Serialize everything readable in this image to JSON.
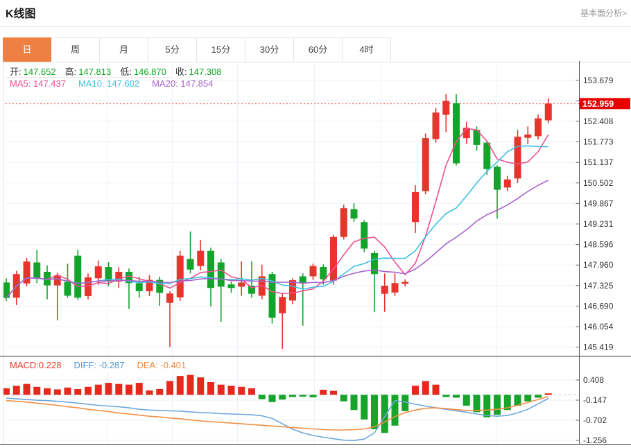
{
  "header": {
    "title": "K线图",
    "link": "基本面分析>"
  },
  "tabs": {
    "items": [
      "日",
      "周",
      "月",
      "5分",
      "15分",
      "30分",
      "60分",
      "4时"
    ],
    "active_index": 0
  },
  "info": {
    "open_label": "开:",
    "open": "147.652",
    "high_label": "高:",
    "high": "147.813",
    "low_label": "低:",
    "low": "146.870",
    "close_label": "收:",
    "close": "147.308"
  },
  "ma_info": {
    "ma5_label": "MA5:",
    "ma5": "147.437",
    "ma10_label": "MA10:",
    "ma10": "147.602",
    "ma20_label": "MA20:",
    "ma20": "147.854"
  },
  "macd_info": {
    "macd_label": "MACD:",
    "macd": "0.228",
    "diff_label": "DIFF:",
    "diff": "-0.287",
    "dea_label": "DEA:",
    "dea": "-0.401"
  },
  "colors": {
    "accent_orange": "#ef8044",
    "value_green": "#0ba61e",
    "current_price_bg": "#e60000",
    "dotted_line": "#f57d7d",
    "grid": "#edf1f7",
    "axis_line": "#555555",
    "panel_separator": "#2b2b2b"
  },
  "chart_data": {
    "type": "candlestick",
    "title": "K线图",
    "legend": [
      "MA5",
      "MA10",
      "MA20",
      "MACD",
      "DIFF",
      "DEA"
    ],
    "price_panel": {
      "type": "candlestick",
      "up_color": "#e5352c",
      "down_color": "#14a42c",
      "current_price": 152.959,
      "current_price_label": "152.959",
      "y_ticks": [
        {
          "v": 153.679,
          "label": "153.679"
        },
        {
          "v": 153.044,
          "label": ""
        },
        {
          "v": 152.408,
          "label": "152.408"
        },
        {
          "v": 151.773,
          "label": "151.773"
        },
        {
          "v": 151.137,
          "label": "151.137"
        },
        {
          "v": 150.502,
          "label": "150.502"
        },
        {
          "v": 149.867,
          "label": "149.867"
        },
        {
          "v": 149.231,
          "label": "149.231"
        },
        {
          "v": 148.596,
          "label": "148.596"
        },
        {
          "v": 147.96,
          "label": "147.960"
        },
        {
          "v": 147.325,
          "label": "147.325"
        },
        {
          "v": 146.69,
          "label": "146.690"
        },
        {
          "v": 146.054,
          "label": "146.054"
        },
        {
          "v": 145.419,
          "label": "145.419"
        }
      ],
      "ma_periods": [
        5,
        10,
        20
      ],
      "ma_colors": [
        "#ee4f8f",
        "#3ec1e2",
        "#a861cc"
      ],
      "candles": [
        [
          147.42,
          146.94,
          146.85,
          147.55
        ],
        [
          146.95,
          147.68,
          146.72,
          147.78
        ],
        [
          147.39,
          148.07,
          147.3,
          148.18
        ],
        [
          148.04,
          147.54,
          147.4,
          148.43
        ],
        [
          147.75,
          147.33,
          146.9,
          147.95
        ],
        [
          147.33,
          147.64,
          146.25,
          147.72
        ],
        [
          147.44,
          147.01,
          146.95,
          148.0
        ],
        [
          148.25,
          146.95,
          146.88,
          148.43
        ],
        [
          147.0,
          147.58,
          146.9,
          147.7
        ],
        [
          147.55,
          147.92,
          147.35,
          148.1
        ],
        [
          147.9,
          147.45,
          147.3,
          148.05
        ],
        [
          147.45,
          147.75,
          147.25,
          147.9
        ],
        [
          147.75,
          147.4,
          146.6,
          147.85
        ],
        [
          147.4,
          147.15,
          146.95,
          147.6
        ],
        [
          147.15,
          147.5,
          147.0,
          147.65
        ],
        [
          147.5,
          147.1,
          146.7,
          147.6
        ],
        [
          146.79,
          147.08,
          145.42,
          147.15
        ],
        [
          146.96,
          148.25,
          146.85,
          148.4
        ],
        [
          148.15,
          147.82,
          147.7,
          149.0
        ],
        [
          147.93,
          148.4,
          147.8,
          148.74
        ],
        [
          148.4,
          147.25,
          146.68,
          148.5
        ],
        [
          148.04,
          147.29,
          146.2,
          148.15
        ],
        [
          147.36,
          147.25,
          147.1,
          147.45
        ],
        [
          147.29,
          147.42,
          147.01,
          148.07
        ],
        [
          147.32,
          147.07,
          146.95,
          148.07
        ],
        [
          147.01,
          147.61,
          146.9,
          147.97
        ],
        [
          147.68,
          146.33,
          146.15,
          147.75
        ],
        [
          146.47,
          146.97,
          145.37,
          147.07
        ],
        [
          146.86,
          147.49,
          146.75,
          147.55
        ],
        [
          147.61,
          147.4,
          146.08,
          147.7
        ],
        [
          147.61,
          147.93,
          147.5,
          148.0
        ],
        [
          147.9,
          147.52,
          147.35,
          147.98
        ],
        [
          147.48,
          148.83,
          147.35,
          148.9
        ],
        [
          148.83,
          149.72,
          148.75,
          149.83
        ],
        [
          149.69,
          149.4,
          149.3,
          149.87
        ],
        [
          149.29,
          148.47,
          148.36,
          149.35
        ],
        [
          148.33,
          147.68,
          146.5,
          148.4
        ],
        [
          147.07,
          147.32,
          146.51,
          147.7
        ],
        [
          147.11,
          147.4,
          147.0,
          147.7
        ],
        [
          147.38,
          147.44,
          147.3,
          147.52
        ],
        [
          149.29,
          150.22,
          148.95,
          150.43
        ],
        [
          150.25,
          151.89,
          150.15,
          152.03
        ],
        [
          151.86,
          152.68,
          151.75,
          152.82
        ],
        [
          152.61,
          153.04,
          152.07,
          153.25
        ],
        [
          152.97,
          151.11,
          151.04,
          153.25
        ],
        [
          151.89,
          152.21,
          151.71,
          152.39
        ],
        [
          152.14,
          151.68,
          151.5,
          152.25
        ],
        [
          151.75,
          150.93,
          150.75,
          151.8
        ],
        [
          151.0,
          150.29,
          149.4,
          151.05
        ],
        [
          150.36,
          150.61,
          150.25,
          150.72
        ],
        [
          150.64,
          151.93,
          150.5,
          152.14
        ],
        [
          151.9,
          152.0,
          151.7,
          152.25
        ],
        [
          151.95,
          152.5,
          151.85,
          152.62
        ],
        [
          152.44,
          152.959,
          152.35,
          153.12
        ]
      ]
    },
    "macd_panel": {
      "type": "bar",
      "hist_up_color": "#e6291d",
      "hist_down_color": "#16a42a",
      "diff_color": "#6fa7dd",
      "dea_color": "#f08f45",
      "y_ticks": [
        {
          "v": 0.408,
          "label": "0.408"
        },
        {
          "v": -0.147,
          "label": "-0.147"
        },
        {
          "v": -0.702,
          "label": "-0.702"
        },
        {
          "v": -1.256,
          "label": "-1.256"
        }
      ],
      "hist": [
        0.18,
        0.25,
        0.3,
        0.22,
        0.18,
        0.15,
        0.2,
        0.16,
        0.22,
        0.28,
        0.33,
        0.3,
        0.28,
        0.33,
        0.12,
        0.16,
        0.38,
        0.52,
        0.55,
        0.48,
        0.35,
        0.28,
        0.25,
        0.22,
        0.18,
        -0.12,
        -0.2,
        -0.13,
        -0.06,
        -0.05,
        -0.07,
        0.14,
        0.11,
        -0.18,
        -0.42,
        -0.68,
        -0.95,
        -1.05,
        -0.85,
        -0.45,
        0.25,
        0.38,
        0.28,
        -0.06,
        -0.08,
        -0.3,
        -0.48,
        -0.62,
        -0.55,
        -0.42,
        -0.3,
        -0.18,
        -0.08,
        0.04
      ],
      "diff": [
        -0.09,
        -0.11,
        -0.13,
        -0.15,
        -0.16,
        -0.18,
        -0.2,
        -0.23,
        -0.26,
        -0.29,
        -0.31,
        -0.33,
        -0.36,
        -0.4,
        -0.42,
        -0.43,
        -0.44,
        -0.45,
        -0.47,
        -0.49,
        -0.5,
        -0.52,
        -0.53,
        -0.54,
        -0.55,
        -0.58,
        -0.65,
        -0.8,
        -0.95,
        -1.05,
        -1.12,
        -1.17,
        -1.21,
        -1.25,
        -1.26,
        -1.22,
        -1.05,
        -0.6,
        -0.16,
        -0.2,
        -0.26,
        -0.31,
        -0.36,
        -0.4,
        -0.44,
        -0.48,
        -0.53,
        -0.57,
        -0.59,
        -0.57,
        -0.5,
        -0.4,
        -0.25,
        -0.1
      ],
      "dea": [
        -0.16,
        -0.18,
        -0.2,
        -0.23,
        -0.26,
        -0.29,
        -0.33,
        -0.36,
        -0.4,
        -0.43,
        -0.46,
        -0.5,
        -0.53,
        -0.56,
        -0.59,
        -0.61,
        -0.64,
        -0.66,
        -0.69,
        -0.72,
        -0.74,
        -0.76,
        -0.78,
        -0.8,
        -0.82,
        -0.84,
        -0.86,
        -0.88,
        -0.9,
        -0.92,
        -0.94,
        -0.96,
        -0.97,
        -0.97,
        -0.96,
        -0.94,
        -0.88,
        -0.75,
        -0.6,
        -0.49,
        -0.42,
        -0.37,
        -0.36,
        -0.38,
        -0.41,
        -0.43,
        -0.43,
        -0.42,
        -0.4,
        -0.36,
        -0.29,
        -0.21,
        -0.13,
        -0.05
      ]
    }
  }
}
